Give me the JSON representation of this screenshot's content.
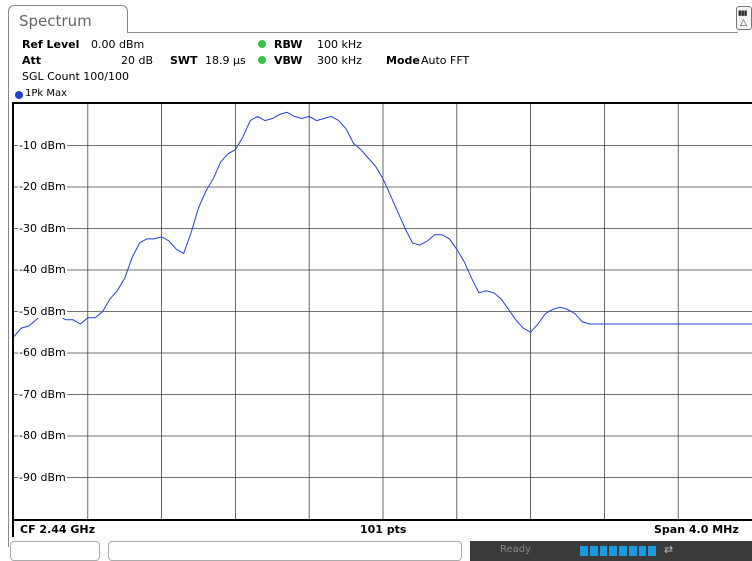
{
  "window": {
    "tab_title": "Spectrum"
  },
  "header": {
    "ref_level_label": "Ref Level",
    "ref_level_value": "0.00 dBm",
    "att_label": "Att",
    "att_value": "20 dB",
    "swt_label": "SWT",
    "swt_value": "18.9 µs",
    "rbw_label": "RBW",
    "rbw_value": "100 kHz",
    "vbw_label": "VBW",
    "vbw_value": "300 kHz",
    "mode_label": "Mode",
    "mode_value": "Auto FFT",
    "sgl_count": "SGL Count 100/100",
    "indicator_color": "#39c044"
  },
  "trace": {
    "label": "1Pk Max",
    "color": "#2042d8"
  },
  "footer": {
    "cf": "CF 2.44 GHz",
    "pts": "101 pts",
    "span": "Span 4.0 MHz"
  },
  "status": {
    "ready": "Ready",
    "progress_color": "#1a9be0"
  },
  "chart_data": {
    "type": "line",
    "ytick_labels": [
      "-10 dBm",
      "-20 dBm",
      "-30 dBm",
      "-40 dBm",
      "-50 dBm",
      "-60 dBm",
      "-70 dBm",
      "-80 dBm",
      "-90 dBm"
    ],
    "ylim": [
      -100,
      0
    ],
    "x_divisions": 10,
    "series": [
      {
        "color": "#2042d8",
        "x": [
          0,
          1,
          2,
          3,
          4,
          5,
          6,
          7,
          8,
          9,
          10,
          11,
          12,
          13,
          14,
          15,
          16,
          17,
          18,
          19,
          20,
          21,
          22,
          23,
          24,
          25,
          26,
          27,
          28,
          29,
          30,
          31,
          32,
          33,
          34,
          35,
          36,
          37,
          38,
          39,
          40,
          41,
          42,
          43,
          44,
          45,
          46,
          47,
          48,
          49,
          50,
          51,
          52,
          53,
          54,
          55,
          56,
          57,
          58,
          59,
          60,
          61,
          62,
          63,
          64,
          65,
          66,
          67,
          68,
          69,
          70,
          71,
          72,
          73,
          74,
          75,
          76,
          77,
          78,
          79,
          80,
          81,
          82,
          83,
          84,
          85,
          86,
          87,
          88,
          89,
          90,
          91,
          92,
          93,
          94,
          95,
          96,
          97,
          98,
          99,
          100
        ],
        "y": [
          -56,
          -54,
          -53.5,
          -52,
          -50.5,
          -50.5,
          -51,
          -52,
          -52,
          -53,
          -51.5,
          -51.5,
          -50,
          -47,
          -45,
          -42,
          -37,
          -33.5,
          -32.5,
          -32.5,
          -32,
          -33,
          -35,
          -36,
          -31,
          -25,
          -21,
          -18,
          -14,
          -12,
          -11,
          -8,
          -4,
          -3,
          -4,
          -3.5,
          -2.5,
          -2,
          -3,
          -3.5,
          -3,
          -4,
          -3.5,
          -3,
          -4,
          -6,
          -9.5,
          -11,
          -13,
          -15,
          -18,
          -22,
          -26,
          -30,
          -33.5,
          -34,
          -33,
          -31.5,
          -31.5,
          -32.5,
          -35,
          -38,
          -42,
          -45.5,
          -45,
          -45.5,
          -47,
          -49.5,
          -52,
          -54,
          -55,
          -53,
          -50.5,
          -49.5,
          -49,
          -49.5,
          -50.5,
          -52.5,
          -53,
          -53,
          -53,
          -53,
          -53,
          -53,
          -53,
          -53,
          -53,
          -53,
          -53,
          -53,
          -53,
          -53,
          -53,
          -53,
          -53,
          -53,
          -53,
          -53,
          -53,
          -53,
          -53
        ]
      }
    ]
  }
}
